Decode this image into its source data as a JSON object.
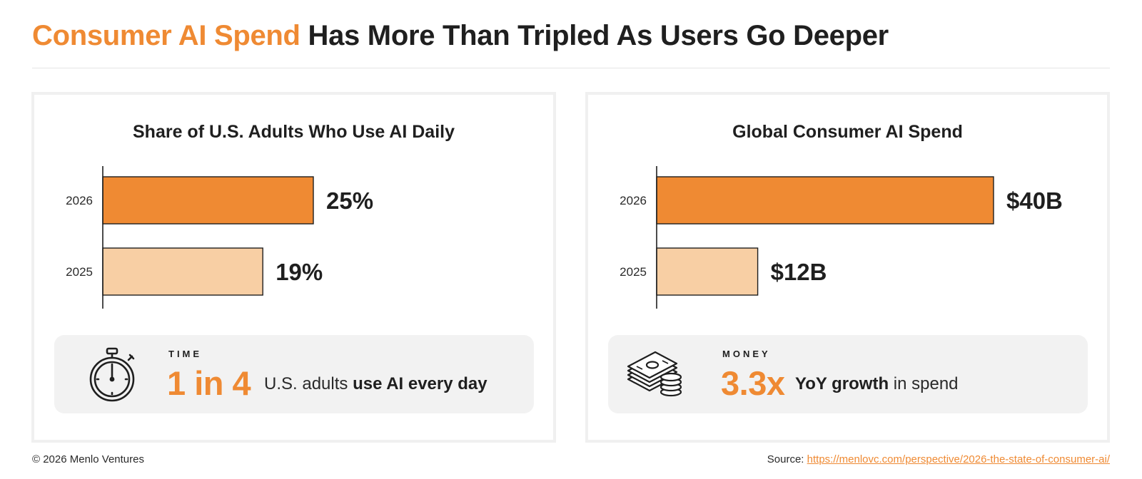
{
  "header": {
    "title_accent": "Consumer AI Spend",
    "title_rest": "Has More Than Tripled As Users Go Deeper"
  },
  "colors": {
    "accent": "#ef8a33",
    "bar_current": "#ef8a33",
    "bar_prior": "#f8cfa4",
    "panel_border": "#f0f0f0",
    "stat_box_bg": "#f2f2f2"
  },
  "chart_data": [
    {
      "type": "bar",
      "orientation": "horizontal",
      "title": "Share of U.S. Adults Who Use AI Daily",
      "categories": [
        "2026",
        "2025"
      ],
      "values": [
        25,
        19
      ],
      "value_labels": [
        "25%",
        "19%"
      ],
      "unit": "%",
      "xlim": [
        0,
        40
      ],
      "grid": false,
      "legend": "none"
    },
    {
      "type": "bar",
      "orientation": "horizontal",
      "title": "Global Consumer AI Spend",
      "categories": [
        "2026",
        "2025"
      ],
      "values": [
        40,
        12
      ],
      "value_labels": [
        "$40B",
        "$12B"
      ],
      "unit": "$B",
      "xlim": [
        0,
        40
      ],
      "grid": false,
      "legend": "none"
    }
  ],
  "stats": [
    {
      "icon": "stopwatch-icon",
      "kicker": "TIME",
      "big": "1 in 4",
      "desc_plain": "U.S. adults",
      "desc_bold": "use AI every day"
    },
    {
      "icon": "money-stack-icon",
      "kicker": "MONEY",
      "big": "3.3x",
      "desc_bold": "YoY growth",
      "desc_plain": "in spend"
    }
  ],
  "footer": {
    "copyright": "© 2026 Menlo Ventures",
    "source_label": "Source:",
    "source_link": "https://menlovc.com/perspective/2026-the-state-of-consumer-ai/"
  }
}
